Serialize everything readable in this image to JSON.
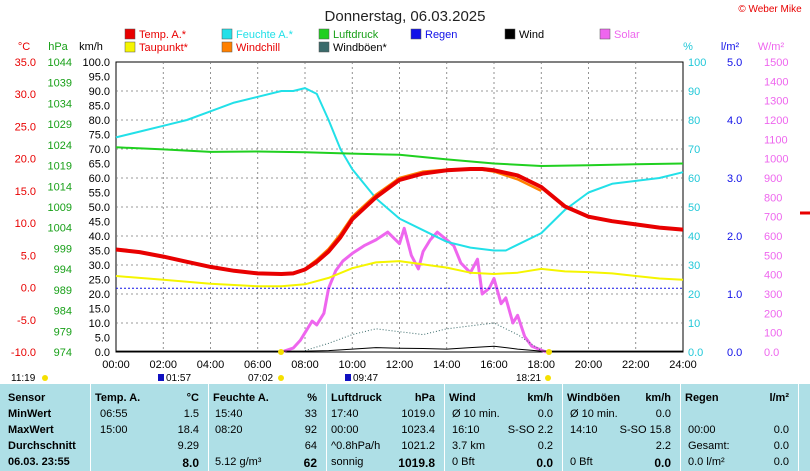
{
  "title": "Donnerstag, 06.03.2025",
  "copyright": "© Weber Mike",
  "legend": [
    {
      "label": "Temp. A.*",
      "color": "#e80000",
      "text_color": "#e80000"
    },
    {
      "label": "Feuchte A.*",
      "color": "#22e0e8",
      "text_color": "#22e0e8"
    },
    {
      "label": "Luftdruck",
      "color": "#20d020",
      "text_color": "#18a018"
    },
    {
      "label": "Regen",
      "color": "#1010e8",
      "text_color": "#1010e8"
    },
    {
      "label": "Wind",
      "color": "#000000",
      "text_color": "#000000"
    },
    {
      "label": "Solar",
      "color": "#ee66ee",
      "text_color": "#ee66ee"
    },
    {
      "label": "Taupunkt*",
      "color": "#f5f500",
      "text_color": "#e80000"
    },
    {
      "label": "Windchill",
      "color": "#ff8000",
      "text_color": "#e80000"
    },
    {
      "label": "Windböen*",
      "color": "#3a6a6a",
      "text_color": "#000000"
    }
  ],
  "axis_units": {
    "temp": "°C",
    "hpa": "hPa",
    "wind": "km/h",
    "humidity": "%",
    "rain": "l/m²",
    "solar": "W/m²"
  },
  "axes": {
    "temp_ticks": [
      "35.0",
      "30.0",
      "25.0",
      "20.0",
      "15.0",
      "10.0",
      "5.0",
      "0.0",
      "-5.0",
      "-10.0"
    ],
    "hpa_ticks": [
      "1044",
      "1039",
      "1034",
      "1029",
      "1024",
      "1019",
      "1014",
      "1009",
      "1004",
      "999",
      "994",
      "989",
      "984",
      "979",
      "974"
    ],
    "wind_ticks": [
      "100.0",
      "95.0",
      "90.0",
      "85.0",
      "80.0",
      "75.0",
      "70.0",
      "65.0",
      "60.0",
      "55.0",
      "50.0",
      "45.0",
      "40.0",
      "35.0",
      "30.0",
      "25.0",
      "20.0",
      "15.0",
      "10.0",
      "5.0",
      "0.0"
    ],
    "hum_ticks": [
      "100",
      "90",
      "80",
      "70",
      "60",
      "50",
      "40",
      "30",
      "20",
      "10",
      "0.0"
    ],
    "rain_ticks": [
      "5.0",
      "4.0",
      "3.0",
      "2.0",
      "1.0",
      "0.0"
    ],
    "solar_ticks": [
      "1500",
      "1400",
      "1300",
      "1200",
      "1100",
      "1000",
      "900",
      "800",
      "700",
      "600",
      "500",
      "400",
      "300",
      "200",
      "100",
      "0.0"
    ],
    "x_ticks": [
      "00:00",
      "02:00",
      "04:00",
      "06:00",
      "08:00",
      "10:00",
      "12:00",
      "14:00",
      "16:00",
      "18:00",
      "20:00",
      "22:00",
      "24:00"
    ]
  },
  "markers": {
    "sunrise_prev": "11:19",
    "m1": "01:57",
    "m2": "07:02",
    "m3": "09:47",
    "sunset": "18:21"
  },
  "chart_data": {
    "type": "line",
    "xlabel": "",
    "ylabel": "",
    "xlim": [
      0,
      24
    ],
    "grid": true,
    "series": [
      {
        "name": "Temp. A.*",
        "axis": "temp",
        "ylim": [
          -10,
          35
        ],
        "x": [
          0,
          1,
          2,
          3,
          4,
          5,
          6,
          7,
          7.5,
          8,
          8.5,
          9,
          9.5,
          10,
          11,
          12,
          13,
          14,
          15,
          15.5,
          16,
          17,
          18,
          19,
          20,
          21,
          22,
          23,
          24
        ],
        "y": [
          5.9,
          5.5,
          4.8,
          4.0,
          3.2,
          2.6,
          2.2,
          2.1,
          2.2,
          2.8,
          4.0,
          5.6,
          7.8,
          10.6,
          14.0,
          16.7,
          17.7,
          18.2,
          18.4,
          18.4,
          18.2,
          17.4,
          15.6,
          12.6,
          11.0,
          10.3,
          9.8,
          9.3,
          9.0
        ]
      },
      {
        "name": "Taupunkt*",
        "axis": "temp",
        "ylim": [
          -10,
          35
        ],
        "x": [
          0,
          1,
          2,
          3,
          4,
          5,
          6,
          7,
          8,
          9,
          10,
          11,
          12,
          13,
          14,
          15,
          16,
          17,
          18,
          19,
          20,
          21,
          22,
          23,
          24
        ],
        "y": [
          1.8,
          1.5,
          1.2,
          0.9,
          0.6,
          0.4,
          0.2,
          0.2,
          0.5,
          1.5,
          3.0,
          3.9,
          4.1,
          3.6,
          3.1,
          2.3,
          2.1,
          2.3,
          2.9,
          2.5,
          2.4,
          2.2,
          1.8,
          1.4,
          1.2
        ]
      },
      {
        "name": "Windchill",
        "axis": "temp",
        "ylim": [
          -10,
          35
        ],
        "x": [
          8,
          8.5,
          9,
          9.5,
          10,
          11,
          12,
          13,
          14,
          15,
          15.5,
          16,
          17,
          18
        ],
        "y": [
          2.9,
          4.3,
          6.0,
          8.3,
          11.0,
          14.4,
          17.0,
          18.0,
          18.3,
          18.4,
          18.3,
          18.0,
          16.8,
          15.0
        ]
      },
      {
        "name": "Feuchte A.*",
        "axis": "humidity",
        "ylim": [
          0,
          100
        ],
        "x": [
          0,
          0.5,
          1,
          2,
          3,
          4,
          5,
          6,
          7,
          7.5,
          8,
          8.5,
          9,
          9.5,
          10,
          11,
          12,
          13,
          14,
          15,
          16,
          16.5,
          17,
          18,
          19,
          20,
          21,
          22,
          23,
          24
        ],
        "y": [
          74,
          75,
          76,
          78,
          80,
          83,
          86,
          88,
          90,
          90,
          91,
          89,
          80,
          70,
          63,
          53,
          46,
          42,
          38,
          36,
          35,
          35,
          37,
          41,
          49,
          55,
          58,
          59,
          60,
          62
        ]
      },
      {
        "name": "Luftdruck",
        "axis": "hpa",
        "ylim": [
          974,
          1044
        ],
        "x": [
          0,
          2,
          4,
          6,
          8,
          10,
          12,
          14,
          16,
          18,
          20,
          22,
          24
        ],
        "y": [
          1023.4,
          1022.9,
          1022.3,
          1022.4,
          1022.2,
          1021.9,
          1021.6,
          1020.5,
          1019.5,
          1018.9,
          1019.1,
          1019.3,
          1019.5
        ]
      },
      {
        "name": "Wind",
        "axis": "wind",
        "ylim": [
          0,
          100
        ],
        "x": [
          0,
          8,
          9,
          10,
          11,
          12,
          13,
          14,
          15,
          16,
          17,
          18,
          24
        ],
        "y": [
          0.3,
          0.3,
          0.5,
          1.0,
          1.5,
          1.3,
          1.2,
          1.0,
          1.5,
          2.0,
          1.0,
          0.3,
          0.3
        ]
      },
      {
        "name": "Windböen*",
        "axis": "wind",
        "ylim": [
          0,
          100
        ],
        "x": [
          8,
          9,
          10,
          11,
          12,
          13,
          14,
          15,
          16,
          17,
          18
        ],
        "y": [
          0.5,
          3,
          6,
          8,
          7,
          6,
          8,
          9,
          10,
          6,
          0.5
        ]
      },
      {
        "name": "Regen",
        "axis": "rain",
        "ylim": [
          0,
          5
        ],
        "x": [
          0,
          24
        ],
        "y": [
          1.1,
          1.1
        ]
      },
      {
        "name": "Solar",
        "axis": "solar",
        "ylim": [
          0,
          1500
        ],
        "x": [
          7,
          7.5,
          7.8,
          8,
          8.3,
          8.5,
          8.8,
          9,
          9.3,
          9.6,
          10,
          10.5,
          11,
          11.5,
          12,
          12.2,
          12.5,
          12.8,
          13,
          13.3,
          13.6,
          14,
          14.3,
          14.6,
          15,
          15.3,
          15.5,
          15.8,
          16,
          16.3,
          16.5,
          16.8,
          17,
          17.3,
          17.6,
          18,
          18.2
        ],
        "y": [
          0,
          20,
          60,
          100,
          160,
          140,
          200,
          330,
          420,
          470,
          510,
          550,
          580,
          620,
          560,
          640,
          500,
          430,
          520,
          580,
          620,
          580,
          550,
          460,
          410,
          480,
          300,
          330,
          380,
          250,
          280,
          150,
          190,
          80,
          30,
          10,
          0
        ]
      }
    ]
  },
  "table": {
    "headers": [
      "Sensor",
      "Temp. A.",
      "°C",
      "Feuchte A.",
      "%",
      "Luftdruck",
      "hPa",
      "Wind",
      "km/h",
      "Windböen",
      "km/h",
      "Regen",
      "l/m²"
    ],
    "rows": [
      {
        "label": "MinWert",
        "temp_time": "06:55",
        "temp_val": "1.5",
        "hum_time": "15:40",
        "hum_val": "33",
        "press_time": "17:40",
        "press_val": "1019.0",
        "wind_a": "Ø 10 min.",
        "wind_val": "0.0",
        "gust_a": "Ø 10 min.",
        "gust_val": "0.0",
        "rain_a": "",
        "rain_val": ""
      },
      {
        "label": "MaxWert",
        "temp_time": "15:00",
        "temp_val": "18.4",
        "hum_time": "08:20",
        "hum_val": "92",
        "press_time": "00:00",
        "press_val": "1023.4",
        "wind_a": "16:10",
        "wind_b": "S-SO 2.2",
        "wind_val": "",
        "gust_a": "14:10",
        "gust_b": "S-SO 15.8",
        "gust_val": "",
        "rain_a": "00:00",
        "rain_val": "0.0"
      },
      {
        "label": "Durchschnitt",
        "temp_time": "",
        "temp_val": "9.29",
        "hum_time": "",
        "hum_val": "64",
        "press_time": "^0.8hPa/h",
        "press_val": "1021.2",
        "wind_a": "3.7 km",
        "wind_val": "0.2",
        "gust_a": "",
        "gust_val": "2.2",
        "rain_a": "Gesamt:",
        "rain_val": "0.0"
      },
      {
        "label": "06.03. 23:55",
        "temp_time": "",
        "temp_val": "8.0",
        "hum_time": "5.12 g/m³",
        "hum_val": "62",
        "press_time": "sonnig",
        "press_val": "1019.8",
        "wind_a": "0 Bft",
        "wind_val": "0.0",
        "gust_a": "0 Bft",
        "gust_val": "0.0",
        "rain_a": "0.0 l/m²",
        "rain_val": "0.0"
      }
    ]
  }
}
